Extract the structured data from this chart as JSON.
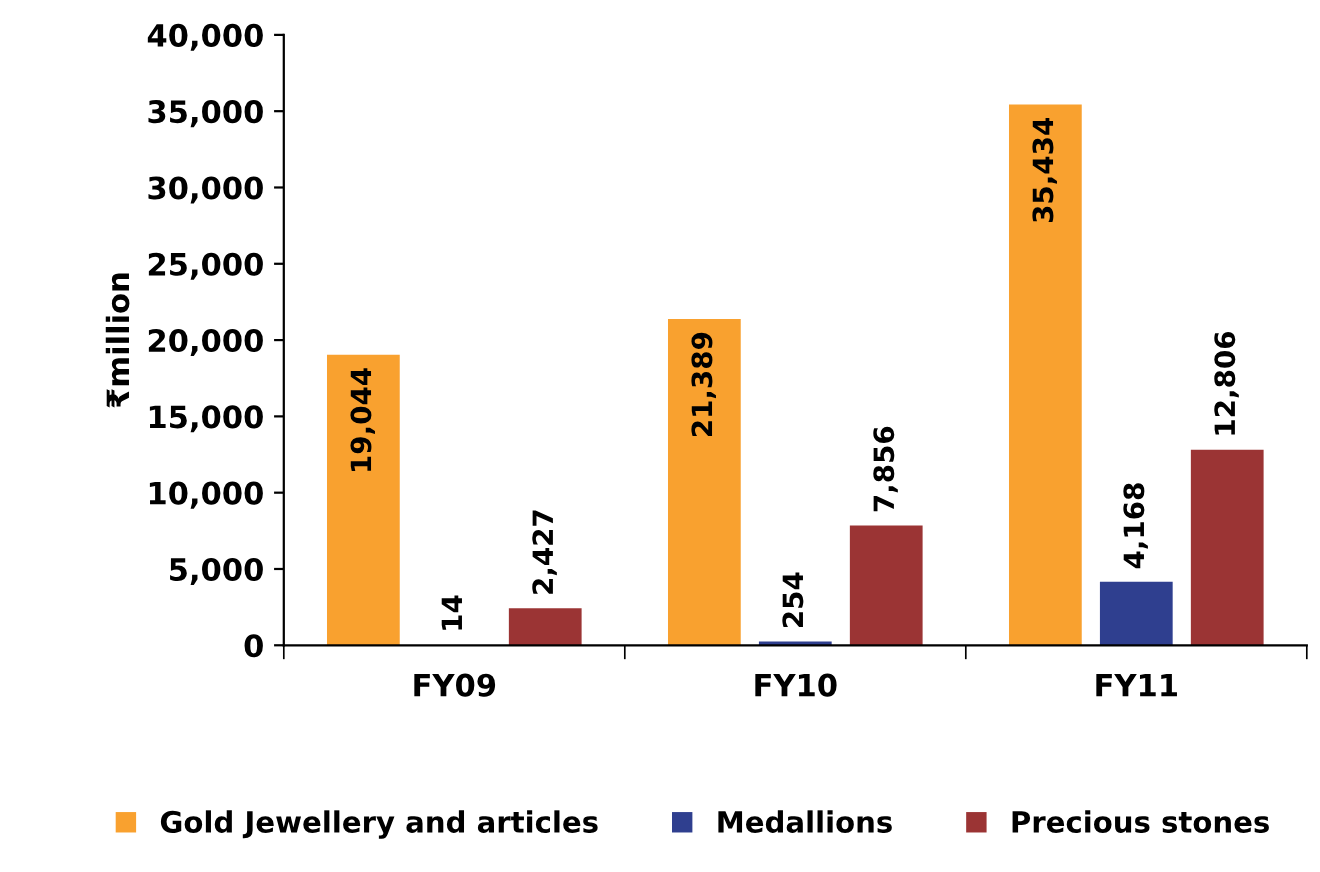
{
  "chart_data": {
    "type": "bar",
    "ylabel": "₹million",
    "categories": [
      "FY09",
      "FY10",
      "FY11"
    ],
    "series": [
      {
        "name": "Gold Jewellery and articles",
        "color": "#f9a12f",
        "values": [
          19044,
          21389,
          35434
        ],
        "value_labels": [
          "19,044",
          "21,389",
          "35,434"
        ]
      },
      {
        "name": "Medallions",
        "color": "#2f3f8f",
        "values": [
          14,
          254,
          4168
        ],
        "value_labels": [
          "14",
          "254",
          "4,168"
        ]
      },
      {
        "name": "Precious stones",
        "color": "#9b3434",
        "values": [
          2427,
          7856,
          12806
        ],
        "value_labels": [
          "2,427",
          "7,856",
          "12,806"
        ]
      }
    ],
    "ylim": [
      0,
      40000
    ],
    "yticks": [
      {
        "value": 0,
        "label": "0"
      },
      {
        "value": 5000,
        "label": "5,000"
      },
      {
        "value": 10000,
        "label": "10,000"
      },
      {
        "value": 15000,
        "label": "15,000"
      },
      {
        "value": 20000,
        "label": "20,000"
      },
      {
        "value": 25000,
        "label": "25,000"
      },
      {
        "value": 30000,
        "label": "30,000"
      },
      {
        "value": 35000,
        "label": "35,000"
      },
      {
        "value": 40000,
        "label": "40,000"
      }
    ],
    "grid": false,
    "legend": "bottom"
  }
}
